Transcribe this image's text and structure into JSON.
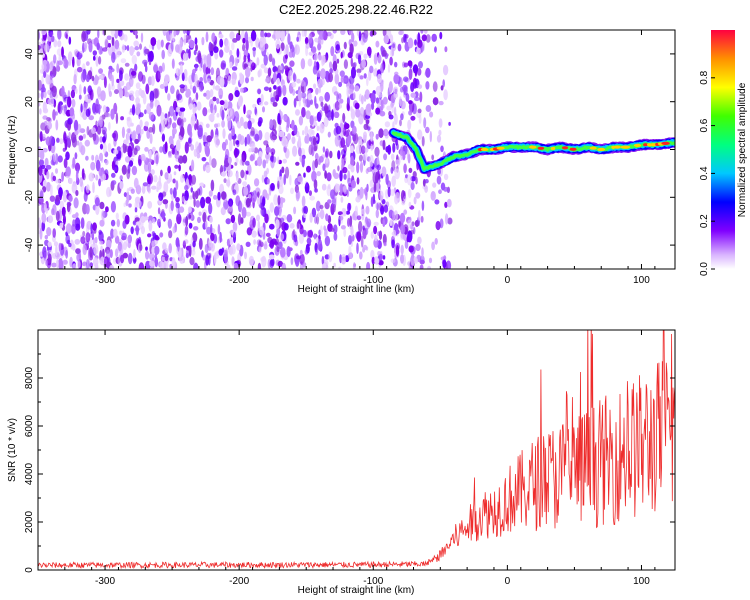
{
  "title": "C2E2.2025.298.22.46.R22",
  "chart_data": [
    {
      "type": "heatmap",
      "xlabel": "Height of straight line (km)",
      "ylabel": "Frequency (Hz)",
      "xlim": [
        -350,
        125
      ],
      "ylim": [
        -50,
        50
      ],
      "xticks": [
        -300,
        -200,
        -100,
        0,
        100
      ],
      "yticks": [
        -40,
        -20,
        0,
        20,
        40
      ],
      "noise_region_x": [
        -350,
        -65
      ],
      "signal_track": {
        "x": [
          -85,
          -75,
          -68,
          -62,
          -50,
          -40,
          -30,
          -20,
          -10,
          0,
          10,
          20,
          30,
          40,
          50,
          60,
          70,
          80,
          90,
          100,
          110,
          125
        ],
        "freq": [
          7,
          5,
          0,
          -8,
          -6,
          -3,
          -2,
          0,
          0,
          1,
          1,
          1,
          0,
          1,
          0,
          1,
          0,
          1,
          1,
          2,
          2,
          3
        ]
      },
      "colorbar": {
        "label": "Normalized spectral amplitude",
        "range": [
          0.0,
          1.0
        ],
        "ticks": [
          0.0,
          0.2,
          0.4,
          0.6,
          0.8
        ]
      }
    },
    {
      "type": "line",
      "xlabel": "Height of straight line (km)",
      "ylabel": "SNR (10 * v/v)",
      "xlim": [
        -350,
        125
      ],
      "ylim": [
        0,
        10000
      ],
      "xticks": [
        -300,
        -200,
        -100,
        0,
        100
      ],
      "yticks": [
        0,
        2000,
        4000,
        6000,
        8000
      ],
      "color": "#ee2c2c",
      "series": [
        {
          "name": "SNR",
          "x": [
            -350,
            -100,
            -60,
            -50,
            -40,
            -30,
            -20,
            -10,
            0,
            20,
            40,
            60,
            80,
            100,
            115,
            125
          ],
          "y": [
            200,
            220,
            250,
            600,
            1300,
            1800,
            2300,
            2500,
            2900,
            3600,
            4000,
            4300,
            4700,
            5200,
            5600,
            6000
          ]
        }
      ]
    }
  ]
}
